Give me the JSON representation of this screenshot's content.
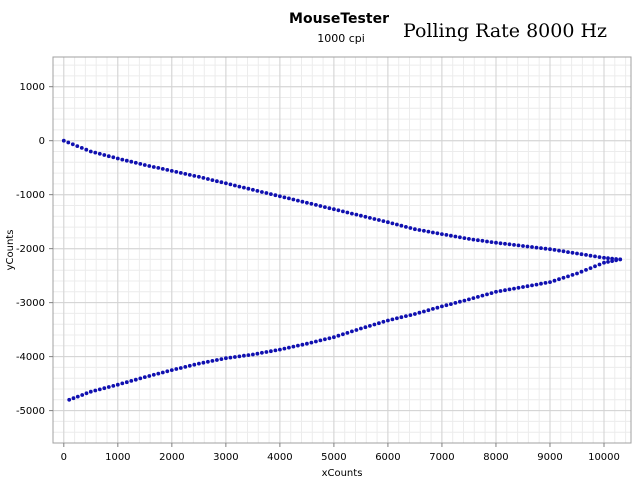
{
  "chart_data": {
    "type": "scatter",
    "title": "MouseTester",
    "subtitle": "1000 cpi",
    "annotation": "Polling Rate 8000 Hz",
    "xlabel": "xCounts",
    "ylabel": "yCounts",
    "xlim": [
      -200,
      10500
    ],
    "ylim": [
      -5600,
      1550
    ],
    "xticks": [
      0,
      1000,
      2000,
      3000,
      4000,
      5000,
      6000,
      7000,
      8000,
      9000,
      10000
    ],
    "yticks": [
      1000,
      0,
      -1000,
      -2000,
      -3000,
      -4000,
      -5000
    ],
    "grid": true,
    "point_color": "#1010b0",
    "series": [
      {
        "x": [
          0,
          500,
          1000,
          1500,
          2000,
          2500,
          3000,
          3500,
          4000,
          4500,
          5000,
          5500,
          6000,
          6500,
          7000,
          7500,
          8000,
          8500,
          9000,
          9500,
          10000,
          10300
        ],
        "y": [
          0,
          -200,
          -330,
          -450,
          -560,
          -670,
          -790,
          -910,
          -1030,
          -1150,
          -1270,
          -1390,
          -1510,
          -1640,
          -1730,
          -1820,
          -1890,
          -1950,
          -2010,
          -2090,
          -2170,
          -2200
        ]
      },
      {
        "x": [
          10300,
          10000,
          9500,
          9000,
          8500,
          8000,
          7500,
          7000,
          6500,
          6000,
          5500,
          5000,
          4500,
          4000,
          3500,
          3000,
          2500,
          2000,
          1500,
          1000,
          500,
          100
        ],
        "y": [
          -2200,
          -2260,
          -2460,
          -2620,
          -2710,
          -2800,
          -2940,
          -3070,
          -3210,
          -3330,
          -3480,
          -3640,
          -3760,
          -3870,
          -3960,
          -4030,
          -4130,
          -4250,
          -4380,
          -4520,
          -4650,
          -4800
        ]
      }
    ]
  }
}
